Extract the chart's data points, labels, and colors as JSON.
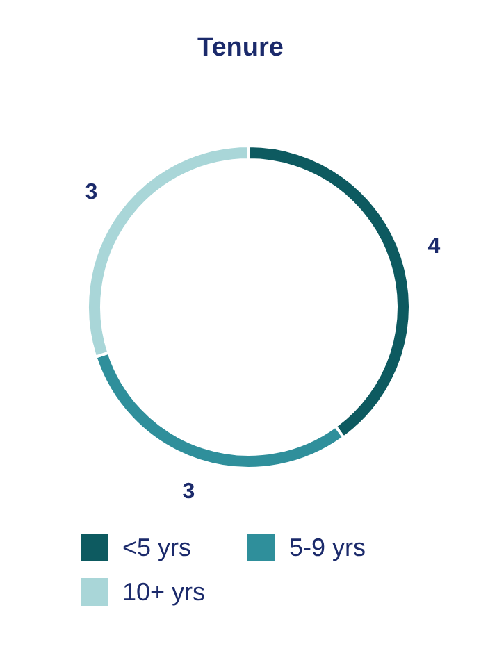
{
  "chart_data": {
    "type": "donut",
    "title": "Tenure",
    "categories": [
      "<5 yrs",
      "5-9 yrs",
      "10+ yrs"
    ],
    "values": [
      4,
      3,
      3
    ],
    "colors": [
      "#0d5a60",
      "#2f8f9b",
      "#a9d6d8"
    ],
    "data_labels": true,
    "legend": "bottom"
  }
}
